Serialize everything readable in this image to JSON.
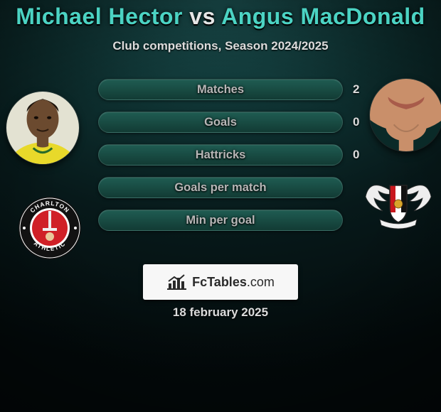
{
  "bg_gradient": [
    "#1a4d4d",
    "#0d2e2e",
    "#07191a",
    "#030a0b"
  ],
  "title": {
    "player_a": "Michael Hector",
    "vs": " vs ",
    "player_b": "Angus MacDonald",
    "color_a": "#4bd3c3",
    "color_vs": "#e6e6e6",
    "color_b": "#4bd3c3",
    "fontsize": 32
  },
  "subtitle": "Club competitions, Season 2024/2025",
  "stats": {
    "type": "bar",
    "label_color": "#b7b7b7",
    "bar_bg": [
      "#1f5c52",
      "#123b34"
    ],
    "bar_fill": [
      "#2a7a6a",
      "#185249"
    ],
    "rows": [
      {
        "label": "Matches",
        "left": "",
        "right": "2",
        "fill_pct": 0
      },
      {
        "label": "Goals",
        "left": "",
        "right": "0",
        "fill_pct": 0
      },
      {
        "label": "Hattricks",
        "left": "",
        "right": "0",
        "fill_pct": 0
      },
      {
        "label": "Goals per match",
        "left": "",
        "right": "",
        "fill_pct": 0
      },
      {
        "label": "Min per goal",
        "left": "",
        "right": "",
        "fill_pct": 0
      }
    ]
  },
  "players": {
    "left": {
      "name": "Michael Hector",
      "jersey_color": "#e8d92a",
      "wall_color": "#e3e2d2",
      "skin": "#6b4a2f",
      "club": {
        "name": "Charlton Athletic",
        "ring_outer": "#121212",
        "ring_inner": "#ffffff",
        "center": "#d02027",
        "text_color": "#ffffff",
        "text_top": "CHARLTON",
        "text_bottom": "ATHLETIC"
      }
    },
    "right": {
      "name": "Angus MacDonald",
      "bg_color": "#0a2a28",
      "skin": "#c98f6a",
      "lip": "#a85b4a",
      "club": {
        "name": "Exeter City",
        "shield_bg": "#ffffff",
        "shield_stripes": [
          "#c9181e",
          "#ffffff",
          "#111111"
        ],
        "wing_color": "#eeeeee",
        "outline": "#222222"
      }
    }
  },
  "brand": {
    "bg": "#f7f7f7",
    "text": "FcTables",
    "suffix": ".com",
    "icon_color": "#2a2a2a"
  },
  "date": "18 february 2025"
}
